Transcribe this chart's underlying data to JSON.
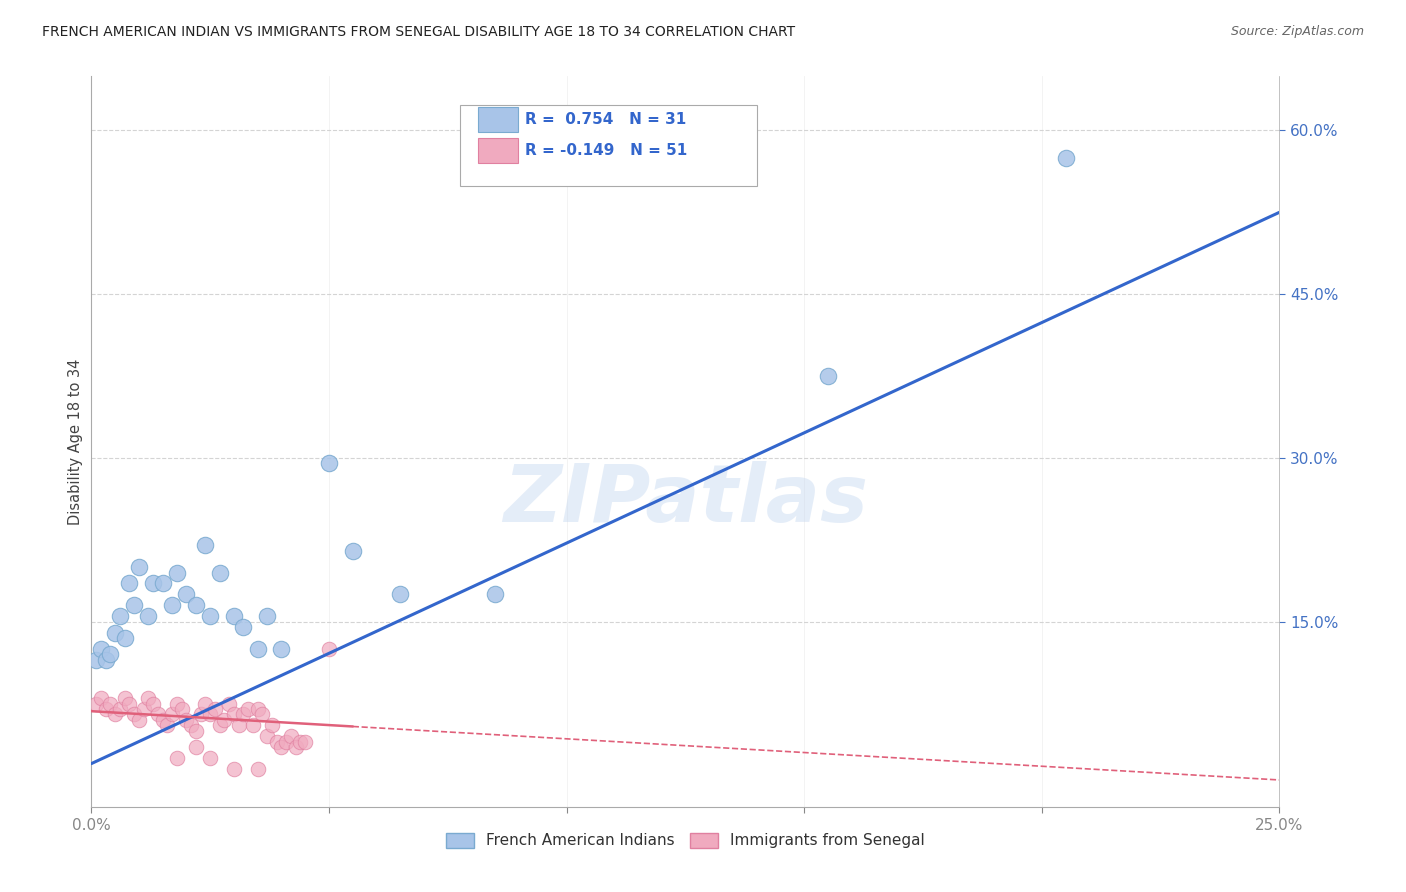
{
  "title": "FRENCH AMERICAN INDIAN VS IMMIGRANTS FROM SENEGAL DISABILITY AGE 18 TO 34 CORRELATION CHART",
  "source": "Source: ZipAtlas.com",
  "ylabel": "Disability Age 18 to 34",
  "xlim": [
    0.0,
    0.25
  ],
  "ylim": [
    -0.02,
    0.65
  ],
  "xticks": [
    0.0,
    0.05,
    0.1,
    0.15,
    0.2,
    0.25
  ],
  "xtick_labels_shown": [
    "0.0%",
    "",
    "",
    "",
    "",
    "25.0%"
  ],
  "yticks_right": [
    0.15,
    0.3,
    0.45,
    0.6
  ],
  "ytick_labels_right": [
    "15.0%",
    "30.0%",
    "45.0%",
    "60.0%"
  ],
  "yticks_gridlines": [
    0.15,
    0.3,
    0.45,
    0.6
  ],
  "blue_scatter": [
    [
      0.001,
      0.115
    ],
    [
      0.002,
      0.125
    ],
    [
      0.003,
      0.115
    ],
    [
      0.004,
      0.12
    ],
    [
      0.005,
      0.14
    ],
    [
      0.006,
      0.155
    ],
    [
      0.007,
      0.135
    ],
    [
      0.008,
      0.185
    ],
    [
      0.009,
      0.165
    ],
    [
      0.01,
      0.2
    ],
    [
      0.012,
      0.155
    ],
    [
      0.013,
      0.185
    ],
    [
      0.015,
      0.185
    ],
    [
      0.017,
      0.165
    ],
    [
      0.018,
      0.195
    ],
    [
      0.02,
      0.175
    ],
    [
      0.022,
      0.165
    ],
    [
      0.024,
      0.22
    ],
    [
      0.025,
      0.155
    ],
    [
      0.027,
      0.195
    ],
    [
      0.03,
      0.155
    ],
    [
      0.032,
      0.145
    ],
    [
      0.035,
      0.125
    ],
    [
      0.037,
      0.155
    ],
    [
      0.04,
      0.125
    ],
    [
      0.05,
      0.295
    ],
    [
      0.055,
      0.215
    ],
    [
      0.065,
      0.175
    ],
    [
      0.085,
      0.175
    ],
    [
      0.155,
      0.375
    ],
    [
      0.205,
      0.575
    ]
  ],
  "pink_scatter": [
    [
      0.001,
      0.075
    ],
    [
      0.002,
      0.08
    ],
    [
      0.003,
      0.07
    ],
    [
      0.004,
      0.075
    ],
    [
      0.005,
      0.065
    ],
    [
      0.006,
      0.07
    ],
    [
      0.007,
      0.08
    ],
    [
      0.008,
      0.075
    ],
    [
      0.009,
      0.065
    ],
    [
      0.01,
      0.06
    ],
    [
      0.011,
      0.07
    ],
    [
      0.012,
      0.08
    ],
    [
      0.013,
      0.075
    ],
    [
      0.014,
      0.065
    ],
    [
      0.015,
      0.06
    ],
    [
      0.016,
      0.055
    ],
    [
      0.017,
      0.065
    ],
    [
      0.018,
      0.075
    ],
    [
      0.019,
      0.07
    ],
    [
      0.02,
      0.06
    ],
    [
      0.021,
      0.055
    ],
    [
      0.022,
      0.05
    ],
    [
      0.023,
      0.065
    ],
    [
      0.024,
      0.075
    ],
    [
      0.025,
      0.065
    ],
    [
      0.026,
      0.07
    ],
    [
      0.027,
      0.055
    ],
    [
      0.028,
      0.06
    ],
    [
      0.029,
      0.075
    ],
    [
      0.03,
      0.065
    ],
    [
      0.031,
      0.055
    ],
    [
      0.032,
      0.065
    ],
    [
      0.033,
      0.07
    ],
    [
      0.034,
      0.055
    ],
    [
      0.035,
      0.07
    ],
    [
      0.036,
      0.065
    ],
    [
      0.037,
      0.045
    ],
    [
      0.038,
      0.055
    ],
    [
      0.039,
      0.04
    ],
    [
      0.04,
      0.035
    ],
    [
      0.041,
      0.04
    ],
    [
      0.042,
      0.045
    ],
    [
      0.043,
      0.035
    ],
    [
      0.044,
      0.04
    ],
    [
      0.045,
      0.04
    ],
    [
      0.05,
      0.125
    ],
    [
      0.018,
      0.025
    ],
    [
      0.022,
      0.035
    ],
    [
      0.025,
      0.025
    ],
    [
      0.03,
      0.015
    ],
    [
      0.035,
      0.015
    ]
  ],
  "blue_line": [
    [
      0.0,
      0.02
    ],
    [
      0.25,
      0.525
    ]
  ],
  "pink_line_solid": [
    [
      0.0,
      0.068
    ],
    [
      0.055,
      0.054
    ]
  ],
  "pink_line_dashed": [
    [
      0.055,
      0.054
    ],
    [
      0.25,
      0.005
    ]
  ],
  "watermark_text": "ZIPatlas",
  "background_color": "#ffffff",
  "grid_color": "#d4d4d4",
  "title_fontsize": 10,
  "blue_dot_color": "#a8c4e8",
  "blue_dot_edge": "#7aaad0",
  "pink_dot_color": "#f0aabf",
  "pink_dot_edge": "#e080a0",
  "blue_line_color": "#3366cc",
  "pink_line_color": "#e0607a",
  "axis_label_color": "#4472c4",
  "ylabel_color": "#444444",
  "title_color": "#222222",
  "source_color": "#666666"
}
